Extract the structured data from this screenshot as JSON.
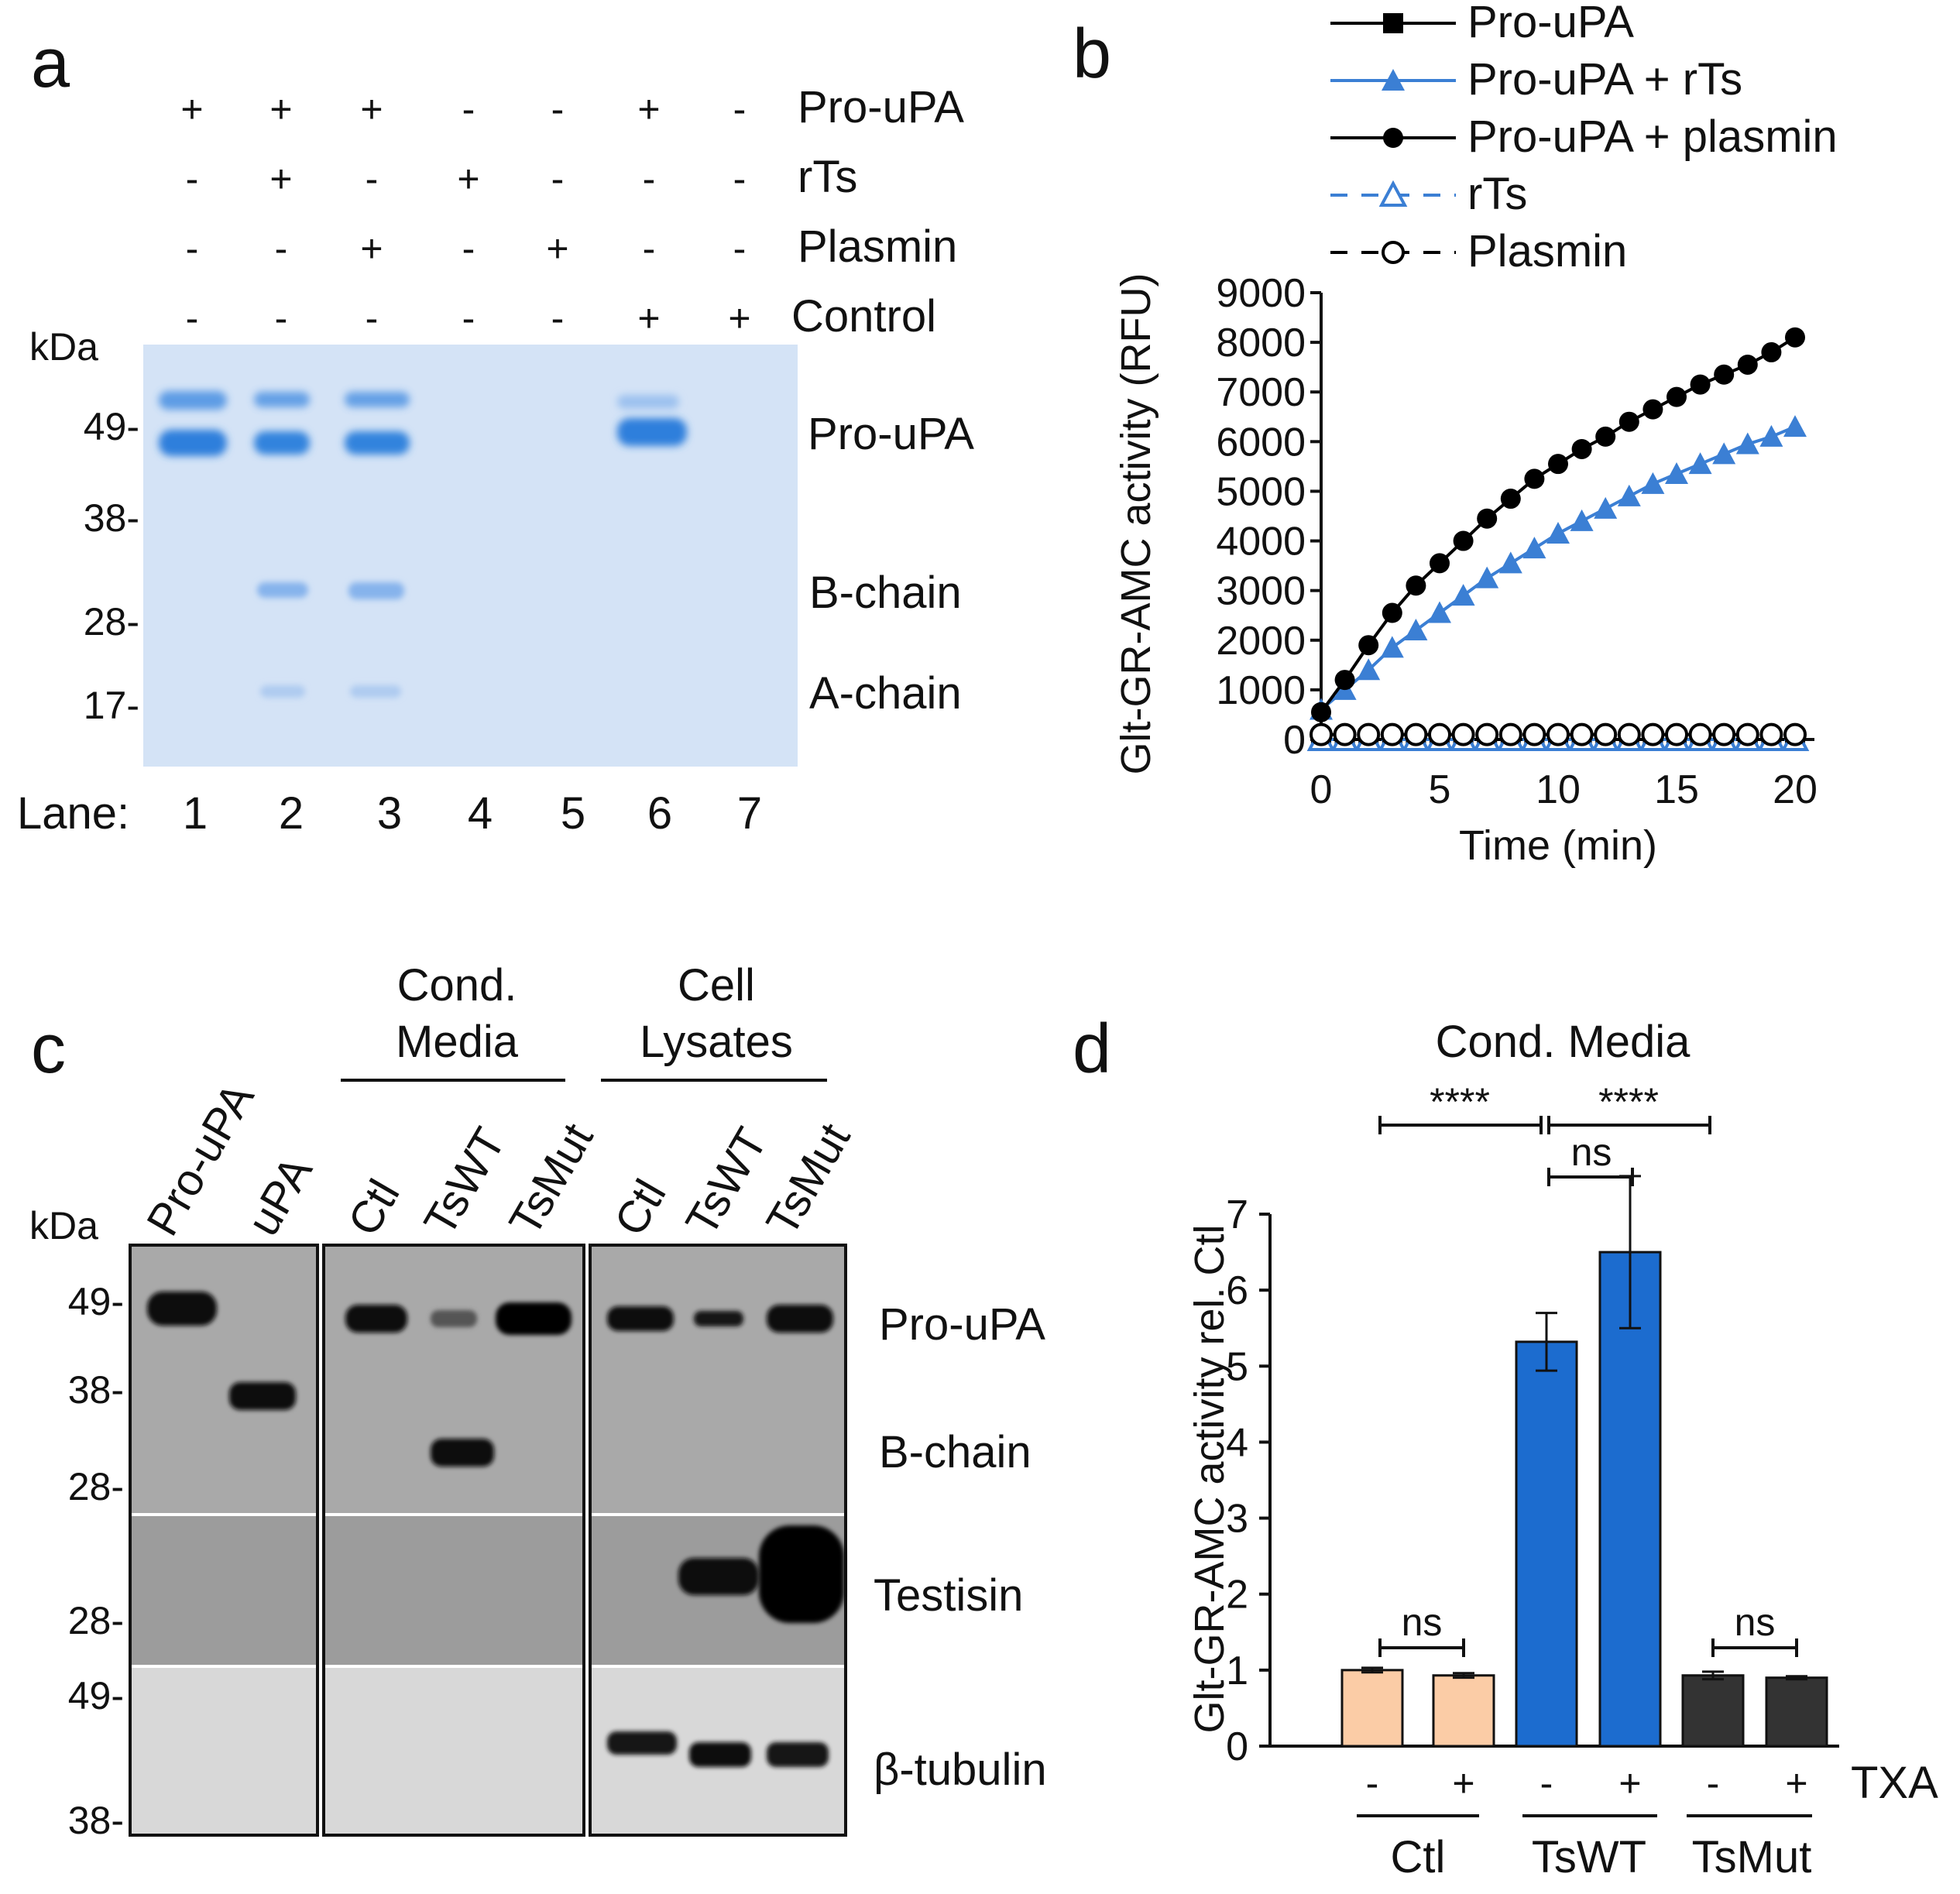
{
  "panel_labels": {
    "a": "a",
    "b": "b",
    "c": "c",
    "d": "d"
  },
  "panel_a": {
    "rows": [
      {
        "label": "Pro-uPA",
        "marks": [
          "+",
          "+",
          "+",
          "-",
          "-",
          "+",
          "-"
        ]
      },
      {
        "label": "rTs",
        "marks": [
          "-",
          "+",
          "-",
          "+",
          "-",
          "-",
          "-"
        ]
      },
      {
        "label": "Plasmin",
        "marks": [
          "-",
          "-",
          "+",
          "-",
          "+",
          "-",
          "-"
        ]
      },
      {
        "label": "Control",
        "marks": [
          "-",
          "-",
          "-",
          "-",
          "-",
          "+",
          "+"
        ]
      }
    ],
    "kda_title": "kDa",
    "markers": [
      "49-",
      "38-",
      "28-",
      "17-"
    ],
    "band_labels": [
      "Pro-uPA",
      "B-chain",
      "A-chain"
    ],
    "lane_title": "Lane:",
    "lanes": [
      "1",
      "2",
      "3",
      "4",
      "5",
      "6",
      "7"
    ],
    "colors": {
      "gel": "#d4e3f6",
      "band_strong": "#3f8be0",
      "band_weak": "#a9c9ef"
    }
  },
  "panel_b": {
    "chart_data": {
      "type": "line",
      "title": "",
      "xlabel": "Time (min)",
      "ylabel": "Glt-GR-AMC activity (RFU)",
      "xlim": [
        0,
        20
      ],
      "ylim": [
        0,
        9000
      ],
      "xticks": [
        "0",
        "5",
        "10",
        "15",
        "20"
      ],
      "yticks": [
        "0",
        "1000",
        "2000",
        "3000",
        "4000",
        "5000",
        "6000",
        "7000",
        "8000",
        "9000"
      ],
      "x": [
        0,
        1,
        2,
        3,
        4,
        5,
        6,
        7,
        8,
        9,
        10,
        11,
        12,
        13,
        14,
        15,
        16,
        17,
        18,
        19,
        20
      ],
      "series": [
        {
          "name": "Pro-uPA",
          "marker": "filled-square",
          "color": "#000000",
          "dash": false,
          "values": [
            0,
            0,
            0,
            0,
            0,
            0,
            0,
            0,
            0,
            0,
            0,
            0,
            0,
            0,
            0,
            0,
            0,
            0,
            0,
            0,
            0
          ]
        },
        {
          "name": "Pro-uPA + rTs",
          "marker": "filled-triangle",
          "color": "#3b7fd4",
          "dash": false,
          "values": [
            600,
            1000,
            1400,
            1850,
            2200,
            2550,
            2900,
            3250,
            3550,
            3850,
            4150,
            4400,
            4650,
            4900,
            5150,
            5350,
            5550,
            5750,
            5950,
            6100,
            6300
          ]
        },
        {
          "name": "Pro-uPA + plasmin",
          "marker": "filled-circle",
          "color": "#000000",
          "dash": false,
          "values": [
            550,
            1200,
            1900,
            2550,
            3100,
            3550,
            4000,
            4450,
            4850,
            5250,
            5550,
            5850,
            6100,
            6400,
            6650,
            6900,
            7150,
            7350,
            7550,
            7800,
            8100
          ]
        },
        {
          "name": "rTs",
          "marker": "open-triangle",
          "color": "#3b7fd4",
          "dash": true,
          "values": [
            0,
            0,
            0,
            0,
            0,
            0,
            0,
            0,
            0,
            0,
            0,
            0,
            0,
            0,
            0,
            0,
            0,
            0,
            0,
            0,
            0
          ]
        },
        {
          "name": "Plasmin",
          "marker": "open-circle",
          "color": "#000000",
          "dash": true,
          "values": [
            100,
            100,
            100,
            100,
            100,
            100,
            100,
            100,
            100,
            100,
            100,
            100,
            100,
            100,
            100,
            100,
            100,
            100,
            100,
            100,
            100
          ]
        }
      ]
    }
  },
  "panel_c": {
    "top_lanes": [
      "Pro-uPA",
      "uPA"
    ],
    "cm_lanes": [
      "Ctl",
      "TsWT",
      "TsMut"
    ],
    "cl_lanes": [
      "Ctl",
      "TsWT",
      "TsMut"
    ],
    "group_cond": [
      "Cond.",
      "Media"
    ],
    "group_cell": [
      "Cell",
      "Lysates"
    ],
    "kda_title": "kDa",
    "markers": [
      "49-",
      "38-",
      "28-",
      "28-",
      "49-",
      "38-"
    ],
    "band_labels": [
      "Pro-uPA",
      "B-chain",
      "Testisin",
      "β-tubulin"
    ]
  },
  "panel_d": {
    "title": "Cond. Media",
    "chart_data": {
      "type": "bar",
      "ylabel": "Glt-GR-AMC activity rel. Ctl",
      "ylim": [
        0,
        7
      ],
      "yticks": [
        "0",
        "1",
        "2",
        "3",
        "4",
        "5",
        "6",
        "7"
      ],
      "categories": [
        "Ctl -",
        "Ctl +",
        "TsWT -",
        "TsWT +",
        "TsMut -",
        "TsMut +"
      ],
      "values": [
        1.0,
        0.93,
        5.32,
        6.5,
        0.93,
        0.9
      ],
      "errors": [
        0.03,
        0.03,
        0.38,
        1.0,
        0.05,
        0.02
      ],
      "colors": [
        "#fbcca6",
        "#fbcca6",
        "#1c6ccf",
        "#1c6ccf",
        "#333333",
        "#333333"
      ],
      "txa_label": "TXA",
      "txa_marks": [
        "-",
        "+",
        "-",
        "+",
        "-",
        "+"
      ],
      "groups": [
        "Ctl",
        "TsWT",
        "TsMut"
      ],
      "significance": [
        {
          "label": "****",
          "pair": "Ctl vs TsWT"
        },
        {
          "label": "****",
          "pair": "TsWT vs TsMut"
        },
        {
          "label": "ns",
          "pair": "TsWT - vs TsWT +"
        },
        {
          "label": "ns",
          "pair": "Ctl - vs Ctl +"
        },
        {
          "label": "ns",
          "pair": "TsMut - vs TsMut +"
        }
      ]
    }
  }
}
